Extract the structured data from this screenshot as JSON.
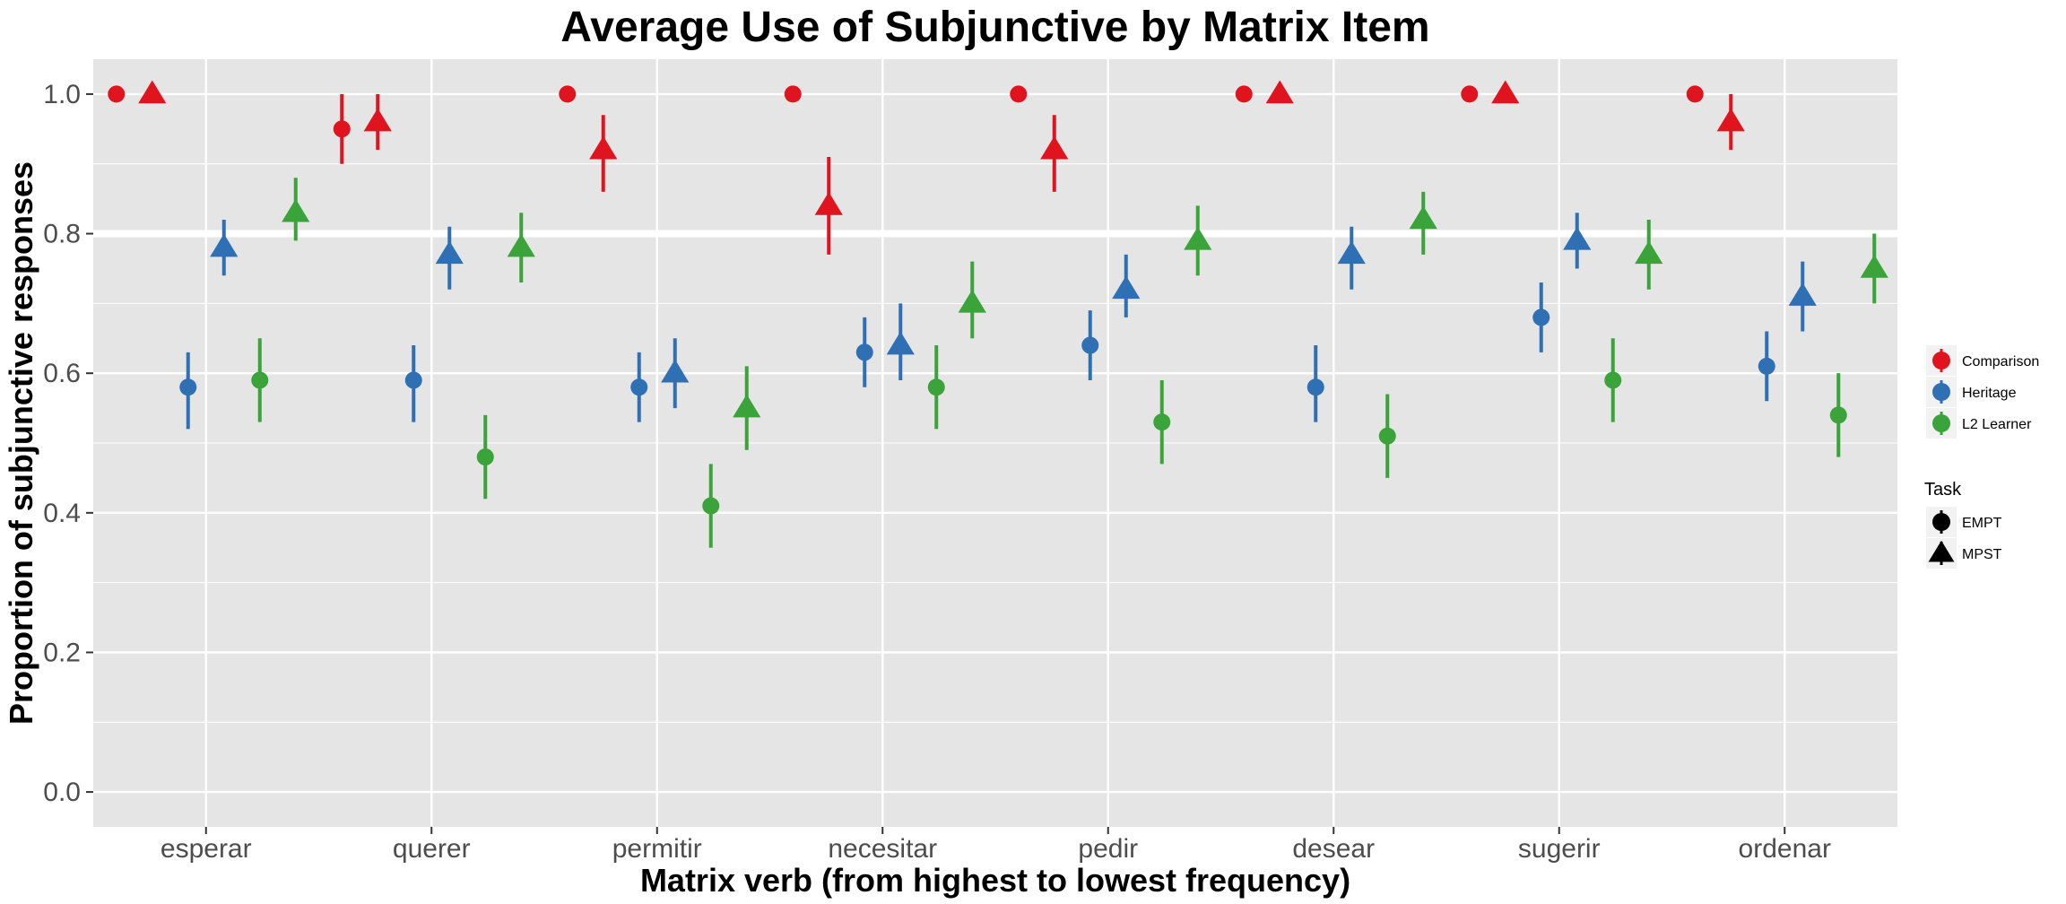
{
  "chart_data": {
    "type": "scatter",
    "title": "Average Use of Subjunctive by Matrix Item",
    "xlabel": "Matrix verb (from highest to lowest frequency)",
    "ylabel": "Proportion of subjunctive responses",
    "categories": [
      "esperar",
      "querer",
      "permitir",
      "necesitar",
      "pedir",
      "desear",
      "sugerir",
      "ordenar"
    ],
    "ylim": [
      -0.05,
      1.05
    ],
    "yticks": [
      "0.0",
      "0.2",
      "0.4",
      "0.6",
      "0.8",
      "1.0"
    ],
    "grid": true,
    "legend_position": "right",
    "group_legend_title": "",
    "task_legend_title": "Task",
    "groups": [
      {
        "name": "Comparison",
        "color": "#e0141e"
      },
      {
        "name": "Heritage",
        "color": "#2f6fb3"
      },
      {
        "name": "L2 Learner",
        "color": "#3aa33a"
      }
    ],
    "tasks": [
      {
        "name": "EMPT",
        "shape": "circle"
      },
      {
        "name": "MPST",
        "shape": "triangle"
      }
    ],
    "series": [
      {
        "group": "Comparison",
        "task": "EMPT",
        "values": [
          1.0,
          0.95,
          1.0,
          1.0,
          1.0,
          1.0,
          1.0,
          1.0
        ],
        "lower": [
          1.0,
          0.9,
          1.0,
          1.0,
          1.0,
          1.0,
          1.0,
          1.0
        ],
        "upper": [
          1.0,
          1.0,
          1.0,
          1.0,
          1.0,
          1.0,
          1.0,
          1.0
        ]
      },
      {
        "group": "Comparison",
        "task": "MPST",
        "values": [
          1.0,
          0.96,
          0.92,
          0.84,
          0.92,
          1.0,
          1.0,
          0.96
        ],
        "lower": [
          1.0,
          0.92,
          0.86,
          0.77,
          0.86,
          1.0,
          1.0,
          0.92
        ],
        "upper": [
          1.0,
          1.0,
          0.97,
          0.91,
          0.97,
          1.0,
          1.0,
          1.0
        ]
      },
      {
        "group": "Heritage",
        "task": "EMPT",
        "values": [
          0.58,
          0.59,
          0.58,
          0.63,
          0.64,
          0.58,
          0.68,
          0.61
        ],
        "lower": [
          0.52,
          0.53,
          0.53,
          0.58,
          0.59,
          0.53,
          0.63,
          0.56
        ],
        "upper": [
          0.63,
          0.64,
          0.63,
          0.68,
          0.69,
          0.64,
          0.73,
          0.66
        ]
      },
      {
        "group": "Heritage",
        "task": "MPST",
        "values": [
          0.78,
          0.77,
          0.6,
          0.64,
          0.72,
          0.77,
          0.79,
          0.71
        ],
        "lower": [
          0.74,
          0.72,
          0.55,
          0.59,
          0.68,
          0.72,
          0.75,
          0.66
        ],
        "upper": [
          0.82,
          0.81,
          0.65,
          0.7,
          0.77,
          0.81,
          0.83,
          0.76
        ]
      },
      {
        "group": "L2 Learner",
        "task": "EMPT",
        "values": [
          0.59,
          0.48,
          0.41,
          0.58,
          0.53,
          0.51,
          0.59,
          0.54
        ],
        "lower": [
          0.53,
          0.42,
          0.35,
          0.52,
          0.47,
          0.45,
          0.53,
          0.48
        ],
        "upper": [
          0.65,
          0.54,
          0.47,
          0.64,
          0.59,
          0.57,
          0.65,
          0.6
        ]
      },
      {
        "group": "L2 Learner",
        "task": "MPST",
        "values": [
          0.83,
          0.78,
          0.55,
          0.7,
          0.79,
          0.82,
          0.77,
          0.75
        ],
        "lower": [
          0.79,
          0.73,
          0.49,
          0.65,
          0.74,
          0.77,
          0.72,
          0.7
        ],
        "upper": [
          0.88,
          0.83,
          0.61,
          0.76,
          0.84,
          0.86,
          0.82,
          0.8
        ]
      }
    ]
  }
}
